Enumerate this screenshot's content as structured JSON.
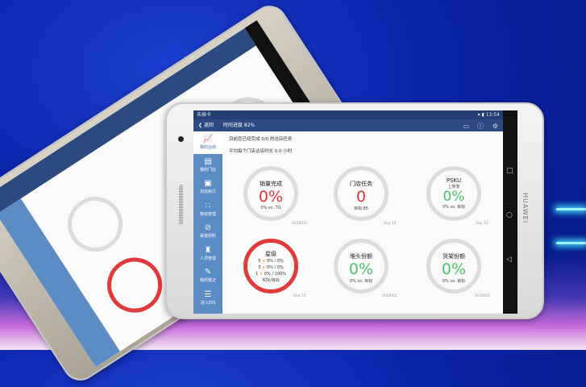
{
  "status": {
    "carrier": "未插卡",
    "time": "13:54"
  },
  "header": {
    "back_label": "返回",
    "time_progress": "时间进度 82%"
  },
  "sidebar": {
    "items": [
      {
        "label": "我的业绩",
        "icon": "chart-icon"
      },
      {
        "label": "我的门店",
        "icon": "store-icon"
      },
      {
        "label": "访店执行",
        "icon": "clipboard-icon"
      },
      {
        "label": "物资管理",
        "icon": "grid-icon"
      },
      {
        "label": "渠道材料",
        "icon": "paperclip-icon"
      },
      {
        "label": "人员管理",
        "icon": "people-icon"
      },
      {
        "label": "我的笔记",
        "icon": "note-icon"
      },
      {
        "label": "进入DIS",
        "icon": "list-icon"
      }
    ]
  },
  "info": {
    "line1": "目前您已经完成 0/0 的访店任务",
    "line2": "平均每个门店访店时长 0.0 小时"
  },
  "cards": [
    {
      "title": "销量完成",
      "value": "0%",
      "sub": "0% vs. TG",
      "date": "2016/02",
      "color": "#e8323a"
    },
    {
      "title": "门店任务",
      "value": "0",
      "sub": "目标:85",
      "date": "Sep 15",
      "color": "#e8323a"
    },
    {
      "title": "PSKU",
      "subtitle": "上架率",
      "value": "0%",
      "sub": "0% vs. 目标",
      "date": "Sep 15",
      "color": "#4cc36a"
    },
    {
      "title": "星级",
      "rows": [
        {
          "stars": "5",
          "value": "0% / 0%"
        },
        {
          "stars": "3",
          "value": "0% / 0%"
        },
        {
          "stars": "1",
          "value": "0% / 100%"
        }
      ],
      "sub": "实际/目标",
      "date": "Sep 15"
    },
    {
      "title": "堆头份额",
      "value": "0%",
      "sub": "0% vs. 目标",
      "date": "2016/02",
      "color": "#4cc36a"
    },
    {
      "title": "货架份额",
      "value": "0%",
      "sub": "0% vs. 目标",
      "date": "2016/02",
      "color": "#4cc36a"
    }
  ],
  "device": {
    "brand": "HUAWEI"
  }
}
